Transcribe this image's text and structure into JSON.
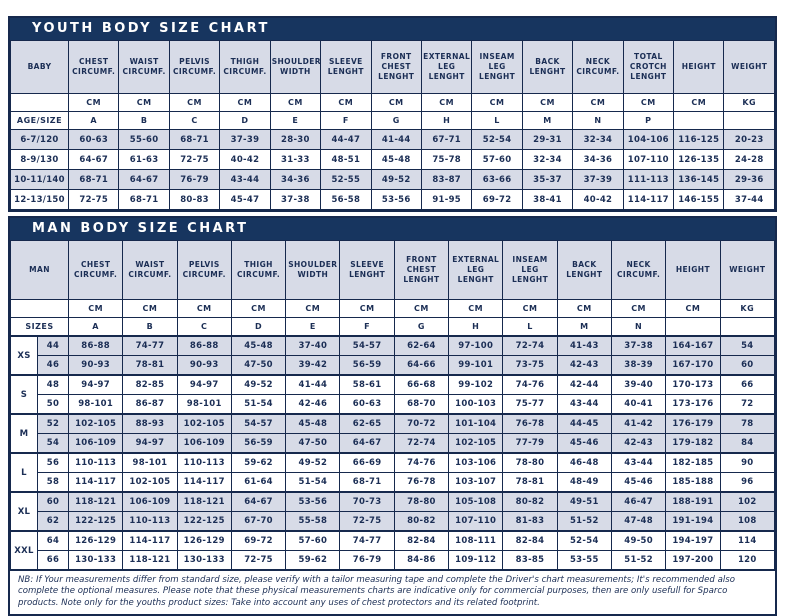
{
  "colors": {
    "header_bar": "#17355f",
    "row_shade": "#d7dbe7",
    "text": "#1b2e55"
  },
  "youth_chart": {
    "title": "YOUTH BODY SIZE CHART",
    "row_header": "BABY",
    "size_label": "AGE/SIZE",
    "columns": [
      "CHEST CIRCUMF.",
      "WAIST CIRCUMF.",
      "PELVIS CIRCUMF.",
      "THIGH CIRCUMF.",
      "SHOULDER WIDTH",
      "SLEEVE LENGHT",
      "FRONT CHEST LENGHT",
      "EXTERNAL LEG LENGHT",
      "INSEAM LEG LENGHT",
      "BACK LENGHT",
      "NECK CIRCUMF.",
      "TOTAL CROTCH LENGHT",
      "HEIGHT",
      "WEIGHT"
    ],
    "units": [
      "CM",
      "CM",
      "CM",
      "CM",
      "CM",
      "CM",
      "CM",
      "CM",
      "CM",
      "CM",
      "CM",
      "CM",
      "CM",
      "KG"
    ],
    "letters": [
      "A",
      "B",
      "C",
      "D",
      "E",
      "F",
      "G",
      "H",
      "L",
      "M",
      "N",
      "P",
      "",
      ""
    ],
    "rows": [
      {
        "size": "6-7/120",
        "shaded": true,
        "values": [
          "60-63",
          "55-60",
          "68-71",
          "37-39",
          "28-30",
          "44-47",
          "41-44",
          "67-71",
          "52-54",
          "29-31",
          "32-34",
          "104-106",
          "116-125",
          "20-23"
        ]
      },
      {
        "size": "8-9/130",
        "shaded": false,
        "values": [
          "64-67",
          "61-63",
          "72-75",
          "40-42",
          "31-33",
          "48-51",
          "45-48",
          "75-78",
          "57-60",
          "32-34",
          "34-36",
          "107-110",
          "126-135",
          "24-28"
        ]
      },
      {
        "size": "10-11/140",
        "shaded": true,
        "values": [
          "68-71",
          "64-67",
          "76-79",
          "43-44",
          "34-36",
          "52-55",
          "49-52",
          "83-87",
          "63-66",
          "35-37",
          "37-39",
          "111-113",
          "136-145",
          "29-36"
        ]
      },
      {
        "size": "12-13/150",
        "shaded": false,
        "values": [
          "72-75",
          "68-71",
          "80-83",
          "45-47",
          "37-38",
          "56-58",
          "53-56",
          "91-95",
          "69-72",
          "38-41",
          "40-42",
          "114-117",
          "146-155",
          "37-44"
        ]
      }
    ]
  },
  "man_chart": {
    "title": "MAN BODY SIZE CHART",
    "row_header": "MAN",
    "size_label": "SIZES",
    "columns": [
      "CHEST CIRCUMF.",
      "WAIST CIRCUMF.",
      "PELVIS CIRCUMF.",
      "THIGH CIRCUMF.",
      "SHOULDER WIDTH",
      "SLEEVE LENGHT",
      "FRONT CHEST LENGHT",
      "EXTERNAL LEG LENGHT",
      "INSEAM LEG LENGHT",
      "BACK LENGHT",
      "NECK CIRCUMF.",
      "HEIGHT",
      "WEIGHT"
    ],
    "units": [
      "CM",
      "CM",
      "CM",
      "CM",
      "CM",
      "CM",
      "CM",
      "CM",
      "CM",
      "CM",
      "CM",
      "CM",
      "KG"
    ],
    "letters": [
      "A",
      "B",
      "C",
      "D",
      "E",
      "F",
      "G",
      "H",
      "L",
      "M",
      "N",
      "",
      ""
    ],
    "groups": [
      {
        "label": "XS",
        "shaded": true,
        "rows": [
          {
            "size": "44",
            "values": [
              "86-88",
              "74-77",
              "86-88",
              "45-48",
              "37-40",
              "54-57",
              "62-64",
              "97-100",
              "72-74",
              "41-43",
              "37-38",
              "164-167",
              "54"
            ]
          },
          {
            "size": "46",
            "values": [
              "90-93",
              "78-81",
              "90-93",
              "47-50",
              "39-42",
              "56-59",
              "64-66",
              "99-101",
              "73-75",
              "42-43",
              "38-39",
              "167-170",
              "60"
            ]
          }
        ]
      },
      {
        "label": "S",
        "shaded": false,
        "rows": [
          {
            "size": "48",
            "values": [
              "94-97",
              "82-85",
              "94-97",
              "49-52",
              "41-44",
              "58-61",
              "66-68",
              "99-102",
              "74-76",
              "42-44",
              "39-40",
              "170-173",
              "66"
            ]
          },
          {
            "size": "50",
            "values": [
              "98-101",
              "86-87",
              "98-101",
              "51-54",
              "42-46",
              "60-63",
              "68-70",
              "100-103",
              "75-77",
              "43-44",
              "40-41",
              "173-176",
              "72"
            ]
          }
        ]
      },
      {
        "label": "M",
        "shaded": true,
        "rows": [
          {
            "size": "52",
            "values": [
              "102-105",
              "88-93",
              "102-105",
              "54-57",
              "45-48",
              "62-65",
              "70-72",
              "101-104",
              "76-78",
              "44-45",
              "41-42",
              "176-179",
              "78"
            ]
          },
          {
            "size": "54",
            "values": [
              "106-109",
              "94-97",
              "106-109",
              "56-59",
              "47-50",
              "64-67",
              "72-74",
              "102-105",
              "77-79",
              "45-46",
              "42-43",
              "179-182",
              "84"
            ]
          }
        ]
      },
      {
        "label": "L",
        "shaded": false,
        "rows": [
          {
            "size": "56",
            "values": [
              "110-113",
              "98-101",
              "110-113",
              "59-62",
              "49-52",
              "66-69",
              "74-76",
              "103-106",
              "78-80",
              "46-48",
              "43-44",
              "182-185",
              "90"
            ]
          },
          {
            "size": "58",
            "values": [
              "114-117",
              "102-105",
              "114-117",
              "61-64",
              "51-54",
              "68-71",
              "76-78",
              "103-107",
              "78-81",
              "48-49",
              "45-46",
              "185-188",
              "96"
            ]
          }
        ]
      },
      {
        "label": "XL",
        "shaded": true,
        "rows": [
          {
            "size": "60",
            "values": [
              "118-121",
              "106-109",
              "118-121",
              "64-67",
              "53-56",
              "70-73",
              "78-80",
              "105-108",
              "80-82",
              "49-51",
              "46-47",
              "188-191",
              "102"
            ]
          },
          {
            "size": "62",
            "values": [
              "122-125",
              "110-113",
              "122-125",
              "67-70",
              "55-58",
              "72-75",
              "80-82",
              "107-110",
              "81-83",
              "51-52",
              "47-48",
              "191-194",
              "108"
            ]
          }
        ]
      },
      {
        "label": "XXL",
        "shaded": false,
        "rows": [
          {
            "size": "64",
            "values": [
              "126-129",
              "114-117",
              "126-129",
              "69-72",
              "57-60",
              "74-77",
              "82-84",
              "108-111",
              "82-84",
              "52-54",
              "49-50",
              "194-197",
              "114"
            ]
          },
          {
            "size": "66",
            "values": [
              "130-133",
              "118-121",
              "130-133",
              "72-75",
              "59-62",
              "76-79",
              "84-86",
              "109-112",
              "83-85",
              "53-55",
              "51-52",
              "197-200",
              "120"
            ]
          }
        ]
      }
    ],
    "note": "NB: If Your measurements differ from standard size, please verify with a tailor measuring tape and complete the Driver's chart measurements; It's recommended also complete the optional measures. Please note that these physical measurements charts are indicative only for commercial purposes, then are only usefull for Sparco products. Note only for the youths product sizes: Take into account any uses of chest protectors and its related footprint."
  }
}
